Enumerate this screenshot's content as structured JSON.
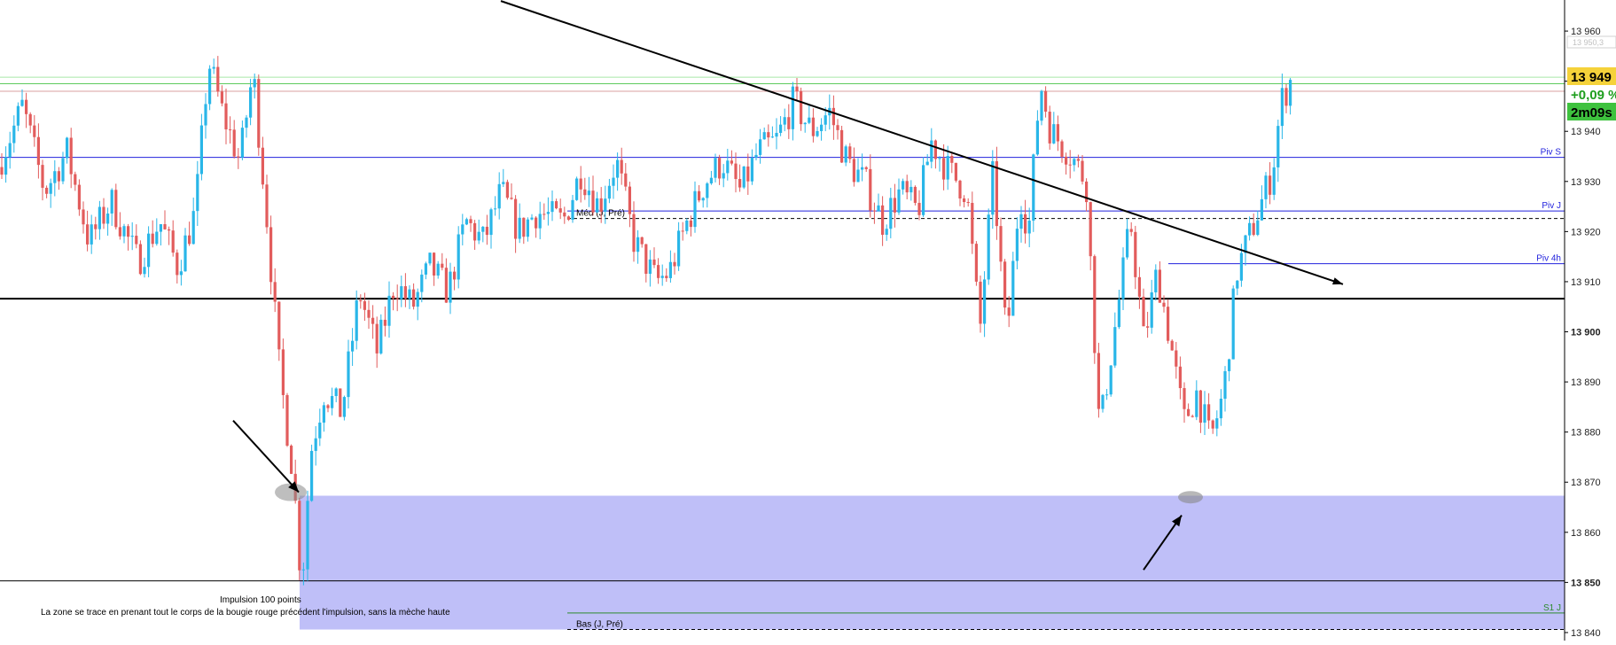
{
  "chart_data": {
    "type": "candlestick",
    "y_axis_side": "right",
    "ylim": [
      13838.4,
      13966.2
    ],
    "y_ticks": [
      {
        "value": 13960,
        "label": "13 960",
        "bold": false
      },
      {
        "value": 13950,
        "label": "13 950",
        "bold": false
      },
      {
        "value": 13940,
        "label": "13 940",
        "bold": false
      },
      {
        "value": 13930,
        "label": "13 930",
        "bold": false
      },
      {
        "value": 13920,
        "label": "13 920",
        "bold": false
      },
      {
        "value": 13910,
        "label": "13 910",
        "bold": false
      },
      {
        "value": 13900,
        "label": "13 900",
        "bold": true
      },
      {
        "value": 13890,
        "label": "13 890",
        "bold": false
      },
      {
        "value": 13880,
        "label": "13 880",
        "bold": false
      },
      {
        "value": 13870,
        "label": "13 870",
        "bold": false
      },
      {
        "value": 13860,
        "label": "13 860",
        "bold": false
      },
      {
        "value": 13850,
        "label": "13 850",
        "bold": true
      },
      {
        "value": 13840,
        "label": "13 840",
        "bold": false
      }
    ],
    "colors": {
      "up": "#29b6e8",
      "down": "#e25c5c",
      "zone": "#bfbff8"
    },
    "path": [
      [
        0,
        13932
      ],
      [
        30,
        13945
      ],
      [
        55,
        13928
      ],
      [
        80,
        13936
      ],
      [
        105,
        13918
      ],
      [
        130,
        13926
      ],
      [
        160,
        13914
      ],
      [
        185,
        13922
      ],
      [
        205,
        13913
      ],
      [
        225,
        13924
      ],
      [
        240,
        13954
      ],
      [
        255,
        13944
      ],
      [
        275,
        13934
      ],
      [
        290,
        13952
      ],
      [
        305,
        13924
      ],
      [
        320,
        13892
      ],
      [
        335,
        13872
      ],
      [
        345,
        13849
      ],
      [
        355,
        13876
      ],
      [
        370,
        13888
      ],
      [
        390,
        13884
      ],
      [
        410,
        13908
      ],
      [
        430,
        13896
      ],
      [
        450,
        13910
      ],
      [
        470,
        13905
      ],
      [
        490,
        13913
      ],
      [
        510,
        13908
      ],
      [
        530,
        13922
      ],
      [
        550,
        13918
      ],
      [
        570,
        13928
      ],
      [
        590,
        13920
      ],
      [
        610,
        13924
      ],
      [
        640,
        13922
      ],
      [
        660,
        13932
      ],
      [
        680,
        13925
      ],
      [
        700,
        13934
      ],
      [
        720,
        13918
      ],
      [
        745,
        13910
      ],
      [
        760,
        13912
      ],
      [
        780,
        13922
      ],
      [
        800,
        13930
      ],
      [
        820,
        13934
      ],
      [
        840,
        13928
      ],
      [
        860,
        13936
      ],
      [
        880,
        13938
      ],
      [
        900,
        13946
      ],
      [
        920,
        13940
      ],
      [
        940,
        13944
      ],
      [
        960,
        13934
      ],
      [
        980,
        13930
      ],
      [
        1000,
        13922
      ],
      [
        1020,
        13928
      ],
      [
        1040,
        13924
      ],
      [
        1055,
        13938
      ],
      [
        1075,
        13932
      ],
      [
        1095,
        13928
      ],
      [
        1110,
        13900
      ],
      [
        1125,
        13932
      ],
      [
        1140,
        13898
      ],
      [
        1155,
        13928
      ],
      [
        1165,
        13920
      ],
      [
        1178,
        13950
      ],
      [
        1190,
        13940
      ],
      [
        1210,
        13936
      ],
      [
        1230,
        13930
      ],
      [
        1245,
        13880
      ],
      [
        1265,
        13904
      ],
      [
        1280,
        13922
      ],
      [
        1295,
        13898
      ],
      [
        1310,
        13912
      ],
      [
        1325,
        13898
      ],
      [
        1340,
        13882
      ],
      [
        1355,
        13888
      ],
      [
        1370,
        13878
      ],
      [
        1385,
        13888
      ],
      [
        1400,
        13912
      ],
      [
        1420,
        13922
      ],
      [
        1440,
        13932
      ],
      [
        1450,
        13946
      ],
      [
        1460,
        13950
      ]
    ],
    "levels": [
      {
        "label": "",
        "value": 13949.5,
        "x_start": 0,
        "color": "#5ecb5e",
        "dash": false,
        "width": 1
      },
      {
        "label": "",
        "value": 13950.8,
        "x_start": 0,
        "color": "#a8e8a8",
        "dash": false,
        "width": 1
      },
      {
        "label": "",
        "value": 13948.0,
        "x_start": 0,
        "color": "#d9a0a0",
        "dash": false,
        "width": 1
      },
      {
        "label": "Piv S",
        "value": 13934.8,
        "x_start": 0,
        "color": "#2222dd",
        "dash": false,
        "width": 1
      },
      {
        "label": "Piv J",
        "value": 13924.1,
        "x_start": 640,
        "color": "#2222dd",
        "dash": false,
        "width": 1
      },
      {
        "label": "Méd (J, Pré)",
        "value": 13922.6,
        "x_start": 640,
        "color": "#000000",
        "dash": true,
        "width": 1
      },
      {
        "label": "Piv 4h",
        "value": 13913.6,
        "x_start": 1318,
        "color": "#2222dd",
        "dash": false,
        "width": 1
      },
      {
        "label": "",
        "value": 13906.6,
        "x_start": 0,
        "color": "#000000",
        "dash": false,
        "width": 2
      },
      {
        "label": "",
        "value": 13850.3,
        "x_start": 0,
        "color": "#000000",
        "dash": false,
        "width": 1
      },
      {
        "label": "S1 J",
        "value": 13843.9,
        "x_start": 640,
        "color": "#2e8b2e",
        "dash": false,
        "width": 1
      },
      {
        "label": "Bas (J, Pré)",
        "value": 13840.6,
        "x_start": 640,
        "color": "#000000",
        "dash": true,
        "width": 1
      }
    ],
    "zone": {
      "x_start": 338,
      "y_high": 13867.3,
      "y_low": 13840.6
    },
    "trendline": {
      "from": [
        565,
        13966
      ],
      "to": [
        1515,
        13909.5
      ]
    },
    "arrows": [
      {
        "from": [
          263,
          13882.3
        ],
        "to": [
          337,
          13868.0
        ]
      },
      {
        "from": [
          1290,
          13852.5
        ],
        "to": [
          1333,
          13863.4
        ]
      }
    ],
    "ellipses": [
      {
        "cx": 328,
        "cy": 13868.0,
        "rx": 18,
        "ry": 10,
        "color": "#888888",
        "opacity": 0.55
      },
      {
        "cx": 1343,
        "cy": 13867.0,
        "rx": 14,
        "ry": 7,
        "color": "#888888",
        "opacity": 0.6
      }
    ],
    "annotations": {
      "impulse": "Impulsion 100 points",
      "zone_note": "La zone se trace en prenant tout le corps de la bougie rouge précédent l'impulsion, sans la mèche haute"
    },
    "axis_badges": {
      "price": {
        "label": "13 949",
        "value": 13949,
        "bg": "#f5d23a",
        "fg": "#000000"
      },
      "change": {
        "label": "+0,09 %",
        "value": 13945,
        "bg": "#ffffff",
        "fg": "#1e9e1e"
      },
      "timer": {
        "label": "2m09s",
        "value": 13940.6,
        "bg": "#3ec23e",
        "fg": "#000000"
      },
      "ghost": {
        "label": "13 950,3",
        "value": 13952.2
      }
    }
  }
}
